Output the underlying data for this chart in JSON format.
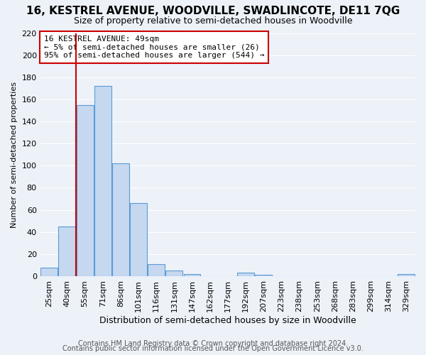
{
  "title": "16, KESTREL AVENUE, WOODVILLE, SWADLINCOTE, DE11 7QG",
  "subtitle": "Size of property relative to semi-detached houses in Woodville",
  "xlabel": "Distribution of semi-detached houses by size in Woodville",
  "ylabel": "Number of semi-detached properties",
  "bin_labels": [
    "25sqm",
    "40sqm",
    "55sqm",
    "71sqm",
    "86sqm",
    "101sqm",
    "116sqm",
    "131sqm",
    "147sqm",
    "162sqm",
    "177sqm",
    "192sqm",
    "207sqm",
    "223sqm",
    "238sqm",
    "253sqm",
    "268sqm",
    "283sqm",
    "299sqm",
    "314sqm",
    "329sqm"
  ],
  "bar_heights": [
    8,
    45,
    155,
    172,
    102,
    66,
    11,
    5,
    2,
    0,
    0,
    3,
    1,
    0,
    0,
    0,
    0,
    0,
    0,
    0,
    2
  ],
  "bar_color": "#c5d8f0",
  "bar_edge_color": "#5b9bd5",
  "marker_line_color": "#cc0000",
  "annotation_title": "16 KESTREL AVENUE: 49sqm",
  "annotation_line1": "← 5% of semi-detached houses are smaller (26)",
  "annotation_line2": "95% of semi-detached houses are larger (544) →",
  "annotation_box_edge": "#cc0000",
  "ylim": [
    0,
    220
  ],
  "yticks": [
    0,
    20,
    40,
    60,
    80,
    100,
    120,
    140,
    160,
    180,
    200,
    220
  ],
  "footer1": "Contains HM Land Registry data © Crown copyright and database right 2024.",
  "footer2": "Contains public sector information licensed under the Open Government Licence v3.0.",
  "background_color": "#edf2f9",
  "plot_background": "#edf2f9",
  "grid_color": "#ffffff",
  "title_fontsize": 11,
  "subtitle_fontsize": 9,
  "xlabel_fontsize": 9,
  "ylabel_fontsize": 8,
  "tick_fontsize": 8,
  "annotation_fontsize": 8,
  "footer_fontsize": 7
}
